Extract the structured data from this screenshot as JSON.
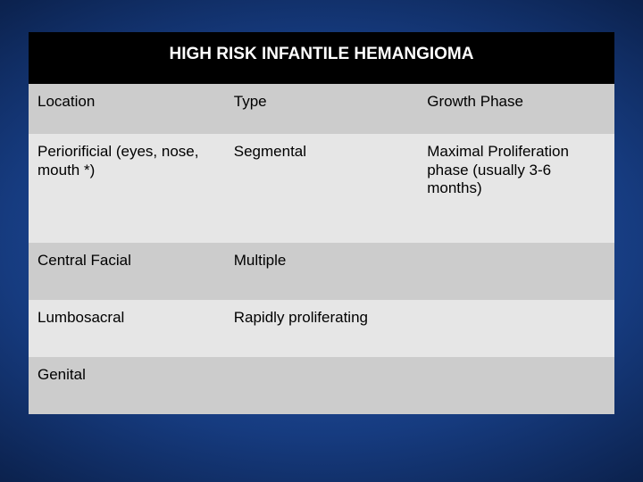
{
  "title": "HIGH RISK INFANTILE HEMANGIOMA",
  "columns": [
    "Location",
    "Type",
    "Growth Phase"
  ],
  "rows": [
    {
      "location": "Periorificial (eyes, nose, mouth *)",
      "type": "Segmental",
      "growth": "Maximal Proliferation phase (usually 3-6 months)"
    },
    {
      "location": "Central Facial",
      "type": "Multiple",
      "growth": ""
    },
    {
      "location": "Lumbosacral",
      "type": "Rapidly proliferating",
      "growth": ""
    },
    {
      "location": "Genital",
      "type": "",
      "growth": ""
    }
  ],
  "colors": {
    "title_bg": "#000000",
    "title_fg": "#ffffff",
    "band_dark": "#cccccc",
    "band_light": "#e6e6e6",
    "text": "#000000"
  }
}
